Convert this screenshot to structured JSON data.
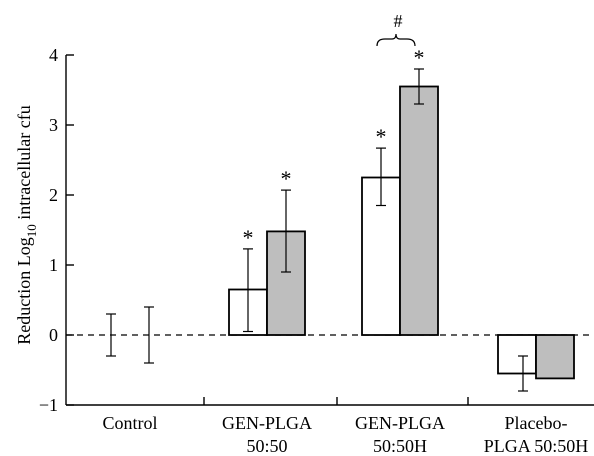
{
  "chart_data": {
    "type": "bar",
    "ylabel": "Reduction Log",
    "ylabel_sub": "10",
    "ylabel_rest": " intracellular cfu",
    "ylim": [
      -1,
      4
    ],
    "yticks": [
      "4",
      "3",
      "2",
      "1",
      "0",
      "−1"
    ],
    "ytick_values": [
      4,
      3,
      2,
      1,
      0,
      -1
    ],
    "baseline_dashed": true,
    "categories": [
      {
        "line1": "Control",
        "line2": ""
      },
      {
        "line1": "GEN-PLGA",
        "line2": "50:50"
      },
      {
        "line1": "GEN-PLGA",
        "line2": "50:50H"
      },
      {
        "line1": "Placebo-",
        "line2": "PLGA 50:50H"
      }
    ],
    "series": [
      {
        "fill": "#ffffff",
        "values": [
          0.0,
          0.65,
          2.25,
          -0.55
        ],
        "err_low": [
          -0.3,
          0.05,
          1.85,
          -0.8
        ],
        "err_high": [
          0.3,
          1.23,
          2.67,
          -0.3
        ]
      },
      {
        "fill": "#bebebe",
        "values": [
          0.0,
          1.48,
          3.55,
          -0.62
        ],
        "err_low": [
          -0.4,
          0.9,
          3.3,
          -0.62
        ],
        "err_high": [
          0.4,
          2.07,
          3.8,
          -0.62
        ]
      }
    ],
    "annotations": {
      "star": "*",
      "stars": [
        [
          1,
          0
        ],
        [
          1,
          1
        ],
        [
          2,
          0
        ],
        [
          2,
          1
        ]
      ],
      "hash": "#",
      "hash_category": 2
    }
  }
}
